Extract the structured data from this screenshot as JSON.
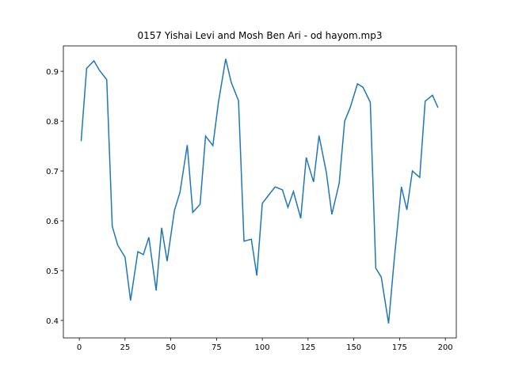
{
  "chart_data": {
    "type": "line",
    "title": "0157 Yishai Levi and Mosh Ben Ari - od hayom.mp3",
    "x": [
      1,
      4,
      8,
      11,
      15,
      18,
      21,
      25,
      28,
      32,
      35,
      38,
      42,
      45,
      48,
      52,
      55,
      59,
      62,
      66,
      69,
      73,
      76,
      80,
      83,
      87,
      90,
      94,
      97,
      100,
      104,
      107,
      111,
      114,
      117,
      121,
      124,
      128,
      131,
      135,
      138,
      142,
      145,
      148,
      152,
      155,
      159,
      162,
      165,
      169,
      172,
      176,
      179,
      182,
      186,
      189,
      193,
      196
    ],
    "series": [
      {
        "name": "series",
        "color": "#1f77b4",
        "values": [
          0.76,
          0.906,
          0.921,
          0.902,
          0.883,
          0.589,
          0.551,
          0.527,
          0.44,
          0.538,
          0.532,
          0.567,
          0.46,
          0.586,
          0.519,
          0.621,
          0.657,
          0.752,
          0.617,
          0.633,
          0.77,
          0.751,
          0.837,
          0.925,
          0.878,
          0.841,
          0.559,
          0.563,
          0.49,
          0.635,
          0.654,
          0.668,
          0.662,
          0.627,
          0.659,
          0.605,
          0.727,
          0.678,
          0.771,
          0.697,
          0.613,
          0.675,
          0.8,
          0.827,
          0.875,
          0.868,
          0.838,
          0.505,
          0.487,
          0.394,
          0.519,
          0.668,
          0.622,
          0.7,
          0.687,
          0.84,
          0.852,
          0.827
        ]
      }
    ],
    "xlim": [
      -8.7,
      206
    ],
    "ylim": [
      0.365,
      0.951
    ],
    "xticks": [
      0,
      25,
      50,
      75,
      100,
      125,
      150,
      175,
      200
    ],
    "yticks": [
      0.4,
      0.5,
      0.6,
      0.7,
      0.8,
      0.9
    ]
  }
}
